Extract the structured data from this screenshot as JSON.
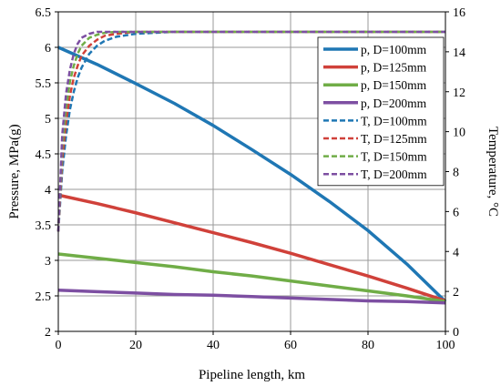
{
  "chart_data": {
    "type": "line",
    "title": "",
    "xlabel": "Pipeline length, km",
    "ylabel_left": "Pressure, MPa(g)",
    "ylabel_right": "Temperature, °C",
    "xlim": [
      0,
      100
    ],
    "ylim_left": [
      2,
      6.5
    ],
    "ylim_right": [
      0,
      16
    ],
    "x_ticks": [
      "0",
      "20",
      "40",
      "60",
      "80",
      "100"
    ],
    "y_ticks_left": [
      "2",
      "2.5",
      "3",
      "3.5",
      "4",
      "4.5",
      "5",
      "5.5",
      "6",
      "6.5"
    ],
    "y_ticks_right": [
      "0",
      "2",
      "4",
      "6",
      "8",
      "10",
      "12",
      "14",
      "16"
    ],
    "grid": true,
    "legend_position": "top-right",
    "colors": {
      "D100": "#1f77b4",
      "D125": "#d0413a",
      "D150": "#70ad47",
      "D200": "#7d4fa2"
    },
    "x": [
      0,
      10,
      20,
      30,
      40,
      50,
      60,
      70,
      80,
      90,
      100
    ],
    "series": [
      {
        "name": "p, D=100mm",
        "axis": "left",
        "style": "solid",
        "color_key": "D100",
        "values": [
          6.0,
          5.76,
          5.49,
          5.21,
          4.9,
          4.56,
          4.21,
          3.83,
          3.42,
          2.95,
          2.42
        ]
      },
      {
        "name": "p, D=125mm",
        "axis": "left",
        "style": "solid",
        "color_key": "D125",
        "values": [
          3.92,
          3.8,
          3.67,
          3.53,
          3.39,
          3.25,
          3.1,
          2.94,
          2.78,
          2.61,
          2.43
        ]
      },
      {
        "name": "p, D=150mm",
        "axis": "left",
        "style": "solid",
        "color_key": "D150",
        "values": [
          3.09,
          3.03,
          2.97,
          2.91,
          2.84,
          2.78,
          2.71,
          2.64,
          2.57,
          2.5,
          2.42
        ]
      },
      {
        "name": "p, D=200mm",
        "axis": "left",
        "style": "solid",
        "color_key": "D200",
        "values": [
          2.58,
          2.56,
          2.54,
          2.52,
          2.51,
          2.49,
          2.47,
          2.45,
          2.43,
          2.42,
          2.4
        ]
      },
      {
        "name": "T, D=100mm",
        "axis": "right",
        "style": "dashed",
        "color_key": "D100",
        "x": [
          0,
          1,
          2,
          3,
          4,
          5,
          6,
          8,
          10,
          12,
          15,
          20,
          25,
          30,
          40,
          60,
          80,
          100
        ],
        "values": [
          5.0,
          8.0,
          9.8,
          11.1,
          12.0,
          12.7,
          13.2,
          13.9,
          14.3,
          14.55,
          14.75,
          14.9,
          14.95,
          15.0,
          15.0,
          15.0,
          15.0,
          15.0
        ]
      },
      {
        "name": "T, D=125mm",
        "axis": "right",
        "style": "dashed",
        "color_key": "D125",
        "x": [
          0,
          1,
          2,
          3,
          4,
          5,
          6,
          8,
          10,
          12,
          15,
          20,
          25,
          30,
          40,
          60,
          80,
          100
        ],
        "values": [
          5.0,
          8.6,
          10.5,
          11.8,
          12.7,
          13.3,
          13.8,
          14.3,
          14.6,
          14.8,
          14.9,
          15.0,
          15.0,
          15.0,
          15.0,
          15.0,
          15.0,
          15.0
        ]
      },
      {
        "name": "T, D=150mm",
        "axis": "right",
        "style": "dashed",
        "color_key": "D150",
        "x": [
          0,
          1,
          2,
          3,
          4,
          5,
          6,
          8,
          10,
          12,
          15,
          20,
          25,
          30,
          40,
          60,
          80,
          100
        ],
        "values": [
          5.0,
          9.2,
          11.2,
          12.5,
          13.3,
          13.9,
          14.3,
          14.7,
          14.85,
          14.95,
          15.0,
          15.0,
          15.0,
          15.0,
          15.0,
          15.0,
          15.0,
          15.0
        ]
      },
      {
        "name": "T, D=200mm",
        "axis": "right",
        "style": "dashed",
        "color_key": "D200",
        "x": [
          0,
          1,
          2,
          3,
          4,
          5,
          6,
          8,
          10,
          12,
          15,
          20,
          25,
          30,
          40,
          60,
          80,
          100
        ],
        "values": [
          5.0,
          9.8,
          11.9,
          13.1,
          13.9,
          14.4,
          14.7,
          14.9,
          15.0,
          15.0,
          15.0,
          15.0,
          15.0,
          15.0,
          15.0,
          15.0,
          15.0,
          15.0
        ]
      }
    ]
  }
}
